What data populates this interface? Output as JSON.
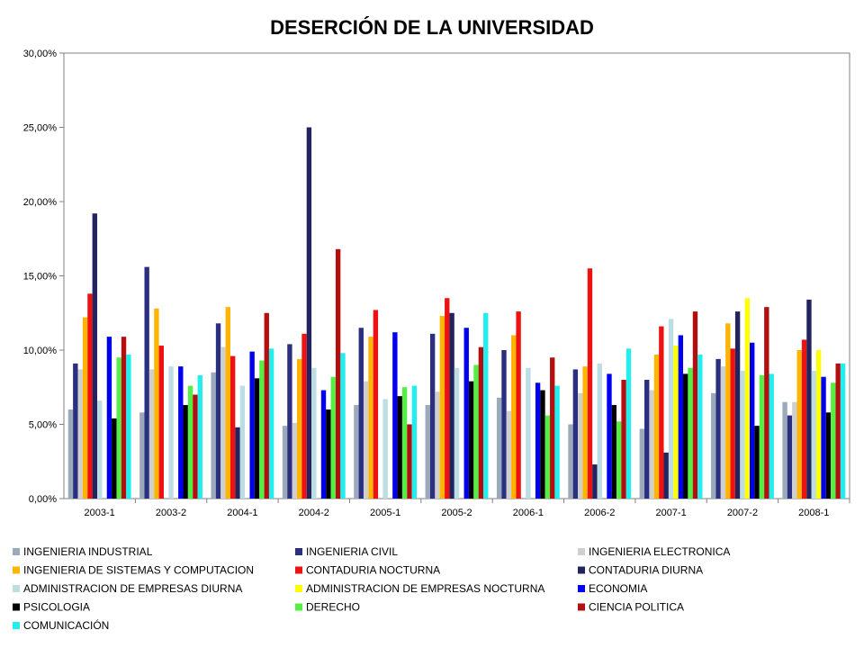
{
  "chart_data": {
    "type": "bar",
    "title": "DESERCIÓN DE LA UNIVERSIDAD",
    "xlabel": "",
    "ylabel": "",
    "ylim": [
      0,
      30
    ],
    "y_unit": "%",
    "y_ticks": [
      0,
      5,
      10,
      15,
      20,
      25,
      30
    ],
    "y_tick_labels": [
      "0,00%",
      "5,00%",
      "10,00%",
      "15,00%",
      "20,00%",
      "25,00%",
      "30,00%"
    ],
    "grid": false,
    "legend_position": "bottom",
    "categories": [
      "2003-1",
      "2003-2",
      "2004-1",
      "2004-2",
      "2005-1",
      "2005-2",
      "2006-1",
      "2006-2",
      "2007-1",
      "2007-2",
      "2008-1"
    ],
    "series": [
      {
        "name": "INGENIERIA INDUSTRIAL",
        "color": "#9aaabb",
        "values": [
          6.0,
          5.8,
          8.5,
          4.9,
          6.3,
          6.3,
          6.8,
          5.0,
          4.7,
          7.1,
          6.5
        ]
      },
      {
        "name": "INGENIERIA CIVIL",
        "color": "#2b2f80",
        "values": [
          9.1,
          15.6,
          11.8,
          10.4,
          11.5,
          11.1,
          10.0,
          8.7,
          8.0,
          9.4,
          5.6
        ]
      },
      {
        "name": "INGENIERIA ELECTRONICA",
        "color": "#cfcfcf",
        "values": [
          8.7,
          8.7,
          10.2,
          5.1,
          7.9,
          7.2,
          5.9,
          7.1,
          7.3,
          8.9,
          6.5
        ]
      },
      {
        "name": "INGENIERIA DE SISTEMAS Y COMPUTACION",
        "color": "#ffb400",
        "values": [
          12.2,
          12.8,
          12.9,
          9.4,
          10.9,
          12.3,
          11.0,
          8.9,
          9.7,
          11.8,
          10.0
        ]
      },
      {
        "name": "CONTADURIA NOCTURNA",
        "color": "#ee1111",
        "values": [
          13.8,
          10.3,
          9.6,
          11.1,
          12.7,
          13.5,
          12.6,
          15.5,
          11.6,
          10.1,
          10.7
        ]
      },
      {
        "name": "CONTADURIA DIURNA",
        "color": "#23235e",
        "values": [
          19.2,
          0,
          4.8,
          25.0,
          0,
          12.5,
          0,
          2.3,
          3.1,
          12.6,
          13.4
        ]
      },
      {
        "name": "ADMINISTRACION DE EMPRESAS DIURNA",
        "color": "#bcdde4",
        "values": [
          6.6,
          8.9,
          7.6,
          8.8,
          6.7,
          8.8,
          8.8,
          9.1,
          12.1,
          8.6,
          8.6
        ]
      },
      {
        "name": "ADMINISTRACION DE EMPRESAS NOCTURNA",
        "color": "#ffff00",
        "values": [
          0,
          0,
          0,
          0,
          0,
          0,
          0,
          0,
          10.3,
          13.5,
          10.0
        ]
      },
      {
        "name": "ECONOMIA",
        "color": "#0000ee",
        "values": [
          10.9,
          8.9,
          9.9,
          7.3,
          11.2,
          11.5,
          7.8,
          8.4,
          11.0,
          10.5,
          8.2
        ]
      },
      {
        "name": "PSICOLOGIA",
        "color": "#000000",
        "values": [
          5.4,
          6.3,
          8.1,
          6.0,
          6.9,
          7.9,
          7.3,
          6.3,
          8.4,
          4.9,
          5.8
        ]
      },
      {
        "name": "DERECHO",
        "color": "#55ee44",
        "values": [
          9.5,
          7.6,
          9.3,
          8.2,
          7.5,
          9.0,
          5.6,
          5.2,
          8.8,
          8.3,
          7.8
        ]
      },
      {
        "name": "CIENCIA POLITICA",
        "color": "#b30f0f",
        "values": [
          10.9,
          7.0,
          12.5,
          16.8,
          5.0,
          10.2,
          9.5,
          8.0,
          12.6,
          12.9,
          9.1
        ]
      },
      {
        "name": "COMUNICACIÓN",
        "color": "#22eeee",
        "values": [
          9.7,
          8.3,
          10.1,
          9.8,
          7.6,
          12.5,
          7.6,
          10.1,
          9.7,
          8.4,
          9.1
        ]
      }
    ]
  }
}
